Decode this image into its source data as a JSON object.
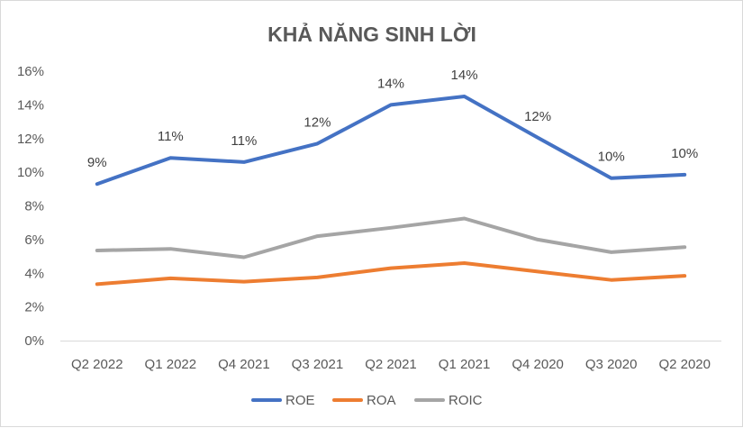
{
  "chart_data": {
    "type": "line",
    "title": "KHẢ NĂNG SINH LỜI",
    "categories": [
      "Q2 2022",
      "Q1 2022",
      "Q4 2021",
      "Q3 2021",
      "Q2 2021",
      "Q1 2021",
      "Q4 2020",
      "Q3 2020",
      "Q2 2020"
    ],
    "y_ticks": [
      "0%",
      "2%",
      "4%",
      "6%",
      "8%",
      "10%",
      "12%",
      "14%",
      "16%"
    ],
    "ylim": [
      0,
      16
    ],
    "grid": false,
    "legend_position": "bottom",
    "series": [
      {
        "name": "ROE",
        "color": "#4472C4",
        "values": [
          9.3,
          10.85,
          10.6,
          11.7,
          14.0,
          14.5,
          12.05,
          9.65,
          9.85
        ],
        "data_labels": [
          "9%",
          "11%",
          "11%",
          "12%",
          "14%",
          "14%",
          "12%",
          "10%",
          "10%"
        ]
      },
      {
        "name": "ROA",
        "color": "#ED7D31",
        "values": [
          3.35,
          3.7,
          3.5,
          3.75,
          4.3,
          4.6,
          4.1,
          3.6,
          3.85
        ]
      },
      {
        "name": "ROIC",
        "color": "#A5A5A5",
        "values": [
          5.35,
          5.45,
          4.95,
          6.2,
          6.7,
          7.25,
          6.0,
          5.25,
          5.55
        ]
      }
    ]
  }
}
